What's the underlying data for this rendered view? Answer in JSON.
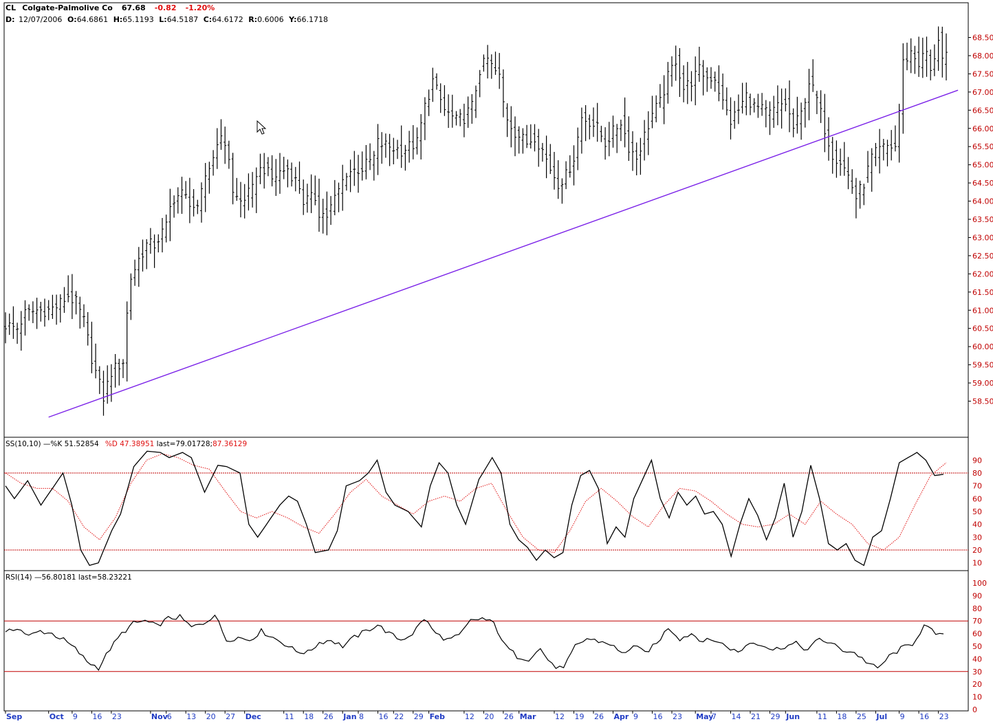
{
  "header": {
    "ticker": "CL",
    "name": "Colgate-Palmolive Co",
    "last": "67.68",
    "change": "-0.82",
    "change_pct": "-1.20%",
    "ohlc_line": {
      "d_label": "D:",
      "d_value": "12/07/2006",
      "o_label": "O:",
      "o_value": "64.6861",
      "h_label": "H:",
      "h_value": "65.1193",
      "l_label": "L:",
      "l_value": "64.5187",
      "c_label": "C:",
      "c_value": "64.6172",
      "r_label": "R:",
      "r_value": "0.6006",
      "y_label": "Y:",
      "y_value": "66.1718"
    }
  },
  "stoch": {
    "prefix": "SS(10,10)",
    "k_part": " —%K 51.52854",
    "d_part": "%D 47.38951",
    "last_black": " last=79.01728;",
    "last_red": "87.36129",
    "levels": {
      "upper": 80,
      "lower": 20
    },
    "ticks": [
      "90",
      "80",
      "70",
      "60",
      "50",
      "40",
      "30",
      "20",
      "10"
    ]
  },
  "rsi": {
    "prefix": "RSI(14)",
    "value_part": " —56.80181",
    "last_part": " last=58.23221",
    "levels": {
      "upper": 70,
      "lower": 30
    },
    "ticks": [
      "100",
      "90",
      "80",
      "70",
      "60",
      "50",
      "40",
      "30",
      "20",
      "10",
      "0"
    ]
  },
  "colors": {
    "price_bars": "#000000",
    "trendline": "#7b22e8",
    "stoch_k": "#000000",
    "stoch_d": "#e01010",
    "level_lines": "#c00000",
    "price_axis_text": "#c00000",
    "date_axis_text": "#1f3bc4"
  },
  "x_axis": {
    "labels": [
      {
        "t": "Sep",
        "i": 0,
        "major": true
      },
      {
        "t": "Oct",
        "i": 11,
        "major": true
      },
      {
        "t": "9",
        "i": 17
      },
      {
        "t": "16",
        "i": 22
      },
      {
        "t": "23",
        "i": 27
      },
      {
        "t": "Nov",
        "i": 37,
        "major": true
      },
      {
        "t": "6",
        "i": 41
      },
      {
        "t": "13",
        "i": 46
      },
      {
        "t": "20",
        "i": 51
      },
      {
        "t": "27",
        "i": 56
      },
      {
        "t": "Dec",
        "i": 61,
        "major": true
      },
      {
        "t": "11",
        "i": 71
      },
      {
        "t": "18",
        "i": 76
      },
      {
        "t": "26",
        "i": 81
      },
      {
        "t": "Jan",
        "i": 86,
        "major": true
      },
      {
        "t": "8",
        "i": 90
      },
      {
        "t": "16",
        "i": 95
      },
      {
        "t": "22",
        "i": 99
      },
      {
        "t": "29",
        "i": 104
      },
      {
        "t": "Feb",
        "i": 108,
        "major": true
      },
      {
        "t": "12",
        "i": 117
      },
      {
        "t": "20",
        "i": 122
      },
      {
        "t": "26",
        "i": 127
      },
      {
        "t": "Mar",
        "i": 131,
        "major": true
      },
      {
        "t": "12",
        "i": 140
      },
      {
        "t": "19",
        "i": 145
      },
      {
        "t": "26",
        "i": 150
      },
      {
        "t": "Apr",
        "i": 155,
        "major": true
      },
      {
        "t": "9",
        "i": 160
      },
      {
        "t": "16",
        "i": 165
      },
      {
        "t": "23",
        "i": 170
      },
      {
        "t": "May",
        "i": 176,
        "major": true
      },
      {
        "t": "7",
        "i": 180
      },
      {
        "t": "14",
        "i": 185
      },
      {
        "t": "21",
        "i": 190
      },
      {
        "t": "29",
        "i": 195
      },
      {
        "t": "Jun",
        "i": 199,
        "major": true
      },
      {
        "t": "11",
        "i": 207
      },
      {
        "t": "18",
        "i": 212
      },
      {
        "t": "25",
        "i": 217
      },
      {
        "t": "Jul",
        "i": 222,
        "major": true
      },
      {
        "t": "9",
        "i": 228
      },
      {
        "t": "16",
        "i": 233
      },
      {
        "t": "23",
        "i": 238
      }
    ]
  },
  "chart_data": {
    "type": "ohlc",
    "title": "CL Colgate-Palmolive Co",
    "x_range": [
      "Sep 2006",
      "Jul 2007"
    ],
    "price_ylim": [
      58.0,
      68.9
    ],
    "price_ticks": [
      "68.50",
      "68.00",
      "67.50",
      "67.00",
      "66.50",
      "66.00",
      "65.50",
      "65.00",
      "64.50",
      "64.00",
      "63.50",
      "63.00",
      "62.50",
      "62.00",
      "61.50",
      "61.00",
      "60.50",
      "60.00",
      "59.50",
      "59.00",
      "58.50"
    ],
    "trendline": {
      "from": {
        "bar": 11,
        "price": 58.06
      },
      "to": {
        "bar": 243,
        "price": 67.05
      }
    },
    "price_anchors": [
      [
        0,
        60.6
      ],
      [
        3,
        60.5
      ],
      [
        5,
        60.9
      ],
      [
        8,
        61.0
      ],
      [
        11,
        61.0
      ],
      [
        13,
        61.1
      ],
      [
        16,
        61.4
      ],
      [
        18,
        61.2
      ],
      [
        20,
        60.7
      ],
      [
        22,
        59.7
      ],
      [
        23,
        59.3
      ],
      [
        25,
        58.6
      ],
      [
        27,
        59.3
      ],
      [
        29,
        59.5
      ],
      [
        30,
        59.6
      ],
      [
        31,
        60.9
      ],
      [
        32,
        61.9
      ],
      [
        34,
        62.4
      ],
      [
        36,
        62.8
      ],
      [
        38,
        62.8
      ],
      [
        41,
        63.3
      ],
      [
        42,
        63.8
      ],
      [
        43,
        64.1
      ],
      [
        45,
        64.2
      ],
      [
        47,
        64.0
      ],
      [
        49,
        63.7
      ],
      [
        51,
        64.7
      ],
      [
        53,
        65.2
      ],
      [
        54,
        65.7
      ],
      [
        56,
        65.6
      ],
      [
        57,
        65.2
      ],
      [
        58,
        64.2
      ],
      [
        60,
        64.0
      ],
      [
        63,
        64.3
      ],
      [
        64,
        64.8
      ],
      [
        66,
        64.9
      ],
      [
        68,
        64.6
      ],
      [
        70,
        64.8
      ],
      [
        72,
        64.9
      ],
      [
        75,
        64.4
      ],
      [
        76,
        64.0
      ],
      [
        79,
        64.1
      ],
      [
        80,
        63.7
      ],
      [
        82,
        63.6
      ],
      [
        85,
        64.3
      ],
      [
        87,
        64.8
      ],
      [
        91,
        64.9
      ],
      [
        94,
        65.2
      ],
      [
        95,
        65.6
      ],
      [
        98,
        65.5
      ],
      [
        101,
        65.4
      ],
      [
        105,
        65.6
      ],
      [
        107,
        66.6
      ],
      [
        109,
        67.3
      ],
      [
        112,
        66.5
      ],
      [
        115,
        66.2
      ],
      [
        117,
        66.3
      ],
      [
        119,
        66.6
      ],
      [
        121,
        67.6
      ],
      [
        123,
        67.9
      ],
      [
        124,
        67.7
      ],
      [
        126,
        67.4
      ],
      [
        127,
        66.7
      ],
      [
        128,
        66.3
      ],
      [
        130,
        65.9
      ],
      [
        133,
        65.6
      ],
      [
        135,
        65.8
      ],
      [
        137,
        65.4
      ],
      [
        139,
        64.9
      ],
      [
        141,
        64.5
      ],
      [
        143,
        64.7
      ],
      [
        145,
        65.2
      ],
      [
        147,
        66.3
      ],
      [
        149,
        66.2
      ],
      [
        151,
        66.0
      ],
      [
        153,
        65.6
      ],
      [
        155,
        65.9
      ],
      [
        157,
        66.2
      ],
      [
        159,
        65.5
      ],
      [
        161,
        65.2
      ],
      [
        163,
        65.8
      ],
      [
        165,
        66.4
      ],
      [
        167,
        66.7
      ],
      [
        169,
        67.4
      ],
      [
        171,
        67.9
      ],
      [
        173,
        67.1
      ],
      [
        175,
        67.3
      ],
      [
        177,
        67.6
      ],
      [
        179,
        67.4
      ],
      [
        181,
        67.4
      ],
      [
        183,
        66.7
      ],
      [
        185,
        66.2
      ],
      [
        187,
        66.5
      ],
      [
        189,
        66.9
      ],
      [
        191,
        66.6
      ],
      [
        193,
        66.5
      ],
      [
        195,
        66.4
      ],
      [
        197,
        66.6
      ],
      [
        199,
        66.7
      ],
      [
        201,
        66.0
      ],
      [
        203,
        66.4
      ],
      [
        205,
        67.3
      ],
      [
        207,
        66.8
      ],
      [
        209,
        66.0
      ],
      [
        211,
        65.3
      ],
      [
        213,
        65.1
      ],
      [
        215,
        64.7
      ],
      [
        217,
        64.1
      ],
      [
        219,
        64.5
      ],
      [
        221,
        65.2
      ],
      [
        223,
        65.4
      ],
      [
        225,
        65.5
      ],
      [
        227,
        65.5
      ],
      [
        228,
        66.5
      ],
      [
        229,
        67.8
      ],
      [
        231,
        68.1
      ],
      [
        233,
        67.8
      ],
      [
        235,
        68.1
      ],
      [
        236,
        67.5
      ],
      [
        238,
        68.5
      ],
      [
        239,
        67.9
      ]
    ],
    "stoch_k_anchors": [
      [
        0,
        70
      ],
      [
        2,
        60
      ],
      [
        5,
        74
      ],
      [
        8,
        55
      ],
      [
        10,
        65
      ],
      [
        13,
        80
      ],
      [
        15,
        55
      ],
      [
        17,
        20
      ],
      [
        19,
        8
      ],
      [
        21,
        10
      ],
      [
        24,
        35
      ],
      [
        26,
        48
      ],
      [
        29,
        85
      ],
      [
        32,
        97
      ],
      [
        35,
        96
      ],
      [
        37,
        92
      ],
      [
        40,
        96
      ],
      [
        42,
        92
      ],
      [
        45,
        65
      ],
      [
        48,
        86
      ],
      [
        50,
        85
      ],
      [
        53,
        80
      ],
      [
        55,
        40
      ],
      [
        57,
        30
      ],
      [
        60,
        45
      ],
      [
        62,
        55
      ],
      [
        64,
        62
      ],
      [
        66,
        58
      ],
      [
        68,
        40
      ],
      [
        70,
        18
      ],
      [
        73,
        20
      ],
      [
        75,
        35
      ],
      [
        77,
        70
      ],
      [
        80,
        74
      ],
      [
        82,
        80
      ],
      [
        84,
        90
      ],
      [
        86,
        65
      ],
      [
        88,
        55
      ],
      [
        91,
        50
      ],
      [
        94,
        38
      ],
      [
        96,
        70
      ],
      [
        98,
        88
      ],
      [
        100,
        80
      ],
      [
        102,
        55
      ],
      [
        104,
        40
      ],
      [
        107,
        75
      ],
      [
        110,
        92
      ],
      [
        112,
        80
      ],
      [
        114,
        40
      ],
      [
        116,
        28
      ],
      [
        118,
        22
      ],
      [
        120,
        12
      ],
      [
        122,
        20
      ],
      [
        124,
        14
      ],
      [
        126,
        18
      ],
      [
        128,
        55
      ],
      [
        130,
        78
      ],
      [
        132,
        82
      ],
      [
        134,
        68
      ],
      [
        136,
        25
      ],
      [
        138,
        38
      ],
      [
        140,
        30
      ],
      [
        142,
        60
      ],
      [
        144,
        75
      ],
      [
        146,
        90
      ],
      [
        148,
        60
      ],
      [
        150,
        45
      ],
      [
        152,
        65
      ],
      [
        154,
        55
      ],
      [
        156,
        62
      ],
      [
        158,
        48
      ],
      [
        160,
        50
      ],
      [
        162,
        40
      ],
      [
        164,
        15
      ],
      [
        166,
        40
      ],
      [
        168,
        60
      ],
      [
        170,
        47
      ],
      [
        172,
        28
      ],
      [
        174,
        45
      ],
      [
        176,
        72
      ],
      [
        178,
        30
      ],
      [
        180,
        50
      ],
      [
        182,
        86
      ],
      [
        184,
        60
      ],
      [
        186,
        25
      ],
      [
        188,
        20
      ],
      [
        190,
        25
      ],
      [
        192,
        12
      ],
      [
        194,
        8
      ],
      [
        196,
        30
      ],
      [
        198,
        35
      ],
      [
        200,
        60
      ],
      [
        202,
        88
      ],
      [
        204,
        92
      ],
      [
        206,
        96
      ],
      [
        208,
        90
      ],
      [
        210,
        78
      ],
      [
        212,
        79
      ]
    ],
    "stoch_d_anchors": [
      [
        0,
        80
      ],
      [
        4,
        72
      ],
      [
        8,
        68
      ],
      [
        12,
        68
      ],
      [
        16,
        58
      ],
      [
        20,
        38
      ],
      [
        24,
        28
      ],
      [
        28,
        45
      ],
      [
        32,
        72
      ],
      [
        36,
        90
      ],
      [
        40,
        95
      ],
      [
        44,
        92
      ],
      [
        48,
        86
      ],
      [
        52,
        83
      ],
      [
        56,
        66
      ],
      [
        60,
        50
      ],
      [
        64,
        45
      ],
      [
        68,
        50
      ],
      [
        72,
        45
      ],
      [
        76,
        38
      ],
      [
        80,
        33
      ],
      [
        84,
        48
      ],
      [
        88,
        65
      ],
      [
        92,
        75
      ],
      [
        96,
        62
      ],
      [
        100,
        55
      ],
      [
        104,
        48
      ],
      [
        108,
        58
      ],
      [
        112,
        62
      ],
      [
        116,
        58
      ],
      [
        120,
        68
      ],
      [
        124,
        72
      ],
      [
        128,
        50
      ],
      [
        132,
        30
      ],
      [
        136,
        20
      ],
      [
        140,
        18
      ],
      [
        144,
        35
      ],
      [
        148,
        58
      ],
      [
        152,
        68
      ],
      [
        156,
        58
      ],
      [
        160,
        46
      ],
      [
        164,
        38
      ],
      [
        168,
        55
      ],
      [
        172,
        68
      ],
      [
        176,
        66
      ],
      [
        180,
        58
      ],
      [
        184,
        48
      ],
      [
        188,
        40
      ],
      [
        192,
        38
      ],
      [
        196,
        40
      ],
      [
        200,
        48
      ],
      [
        204,
        40
      ],
      [
        208,
        58
      ],
      [
        212,
        48
      ],
      [
        216,
        40
      ],
      [
        220,
        25
      ],
      [
        224,
        20
      ],
      [
        228,
        30
      ],
      [
        232,
        55
      ],
      [
        236,
        78
      ],
      [
        240,
        88
      ]
    ],
    "rsi_anchors": [
      [
        0,
        60
      ],
      [
        3,
        65
      ],
      [
        6,
        58
      ],
      [
        9,
        62
      ],
      [
        12,
        60
      ],
      [
        15,
        55
      ],
      [
        18,
        48
      ],
      [
        21,
        38
      ],
      [
        24,
        33
      ],
      [
        27,
        48
      ],
      [
        30,
        60
      ],
      [
        33,
        68
      ],
      [
        36,
        70
      ],
      [
        39,
        66
      ],
      [
        42,
        72
      ],
      [
        45,
        73
      ],
      [
        48,
        65
      ],
      [
        51,
        68
      ],
      [
        54,
        75
      ],
      [
        57,
        55
      ],
      [
        60,
        57
      ],
      [
        63,
        55
      ],
      [
        66,
        62
      ],
      [
        69,
        57
      ],
      [
        72,
        52
      ],
      [
        75,
        46
      ],
      [
        78,
        45
      ],
      [
        81,
        53
      ],
      [
        84,
        55
      ],
      [
        87,
        50
      ],
      [
        90,
        57
      ],
      [
        93,
        62
      ],
      [
        96,
        67
      ],
      [
        99,
        60
      ],
      [
        102,
        55
      ],
      [
        105,
        60
      ],
      [
        108,
        72
      ],
      [
        111,
        60
      ],
      [
        114,
        55
      ],
      [
        117,
        58
      ],
      [
        120,
        70
      ],
      [
        123,
        72
      ],
      [
        126,
        68
      ],
      [
        129,
        50
      ],
      [
        132,
        42
      ],
      [
        135,
        40
      ],
      [
        138,
        48
      ],
      [
        141,
        35
      ],
      [
        144,
        32
      ],
      [
        147,
        50
      ],
      [
        150,
        56
      ],
      [
        153,
        54
      ],
      [
        156,
        52
      ],
      [
        159,
        44
      ],
      [
        162,
        50
      ],
      [
        165,
        45
      ],
      [
        168,
        52
      ],
      [
        171,
        65
      ],
      [
        174,
        56
      ],
      [
        177,
        60
      ],
      [
        180,
        54
      ],
      [
        183,
        55
      ],
      [
        186,
        50
      ],
      [
        189,
        45
      ],
      [
        192,
        53
      ],
      [
        195,
        52
      ],
      [
        198,
        47
      ],
      [
        201,
        50
      ],
      [
        204,
        52
      ],
      [
        207,
        47
      ],
      [
        210,
        56
      ],
      [
        213,
        52
      ],
      [
        216,
        47
      ],
      [
        219,
        45
      ],
      [
        222,
        38
      ],
      [
        225,
        32
      ],
      [
        228,
        42
      ],
      [
        231,
        48
      ],
      [
        234,
        52
      ],
      [
        237,
        66
      ],
      [
        240,
        60
      ],
      [
        242,
        58
      ]
    ]
  }
}
